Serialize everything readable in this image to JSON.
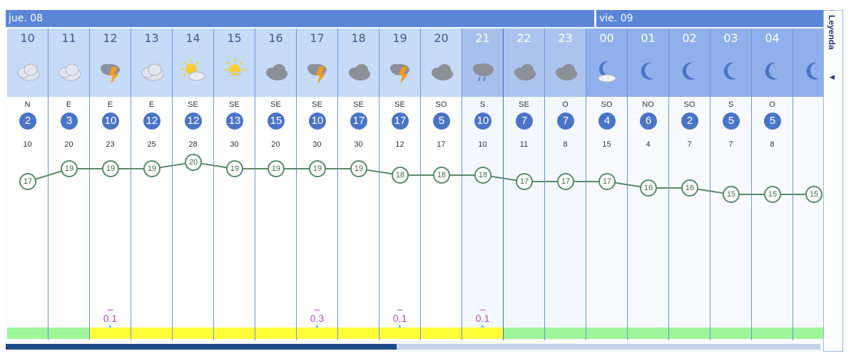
{
  "days": [
    {
      "label": "jue. 08"
    },
    {
      "label": "vie. 09"
    }
  ],
  "hours": [
    {
      "hour": "10",
      "icon": "cloud-icon",
      "dir": "N",
      "wind": "2",
      "gust": "10",
      "temp": 17,
      "rain": "",
      "uv": "green"
    },
    {
      "hour": "11",
      "icon": "cloud-icon",
      "dir": "E",
      "wind": "3",
      "gust": "20",
      "temp": 19,
      "rain": "",
      "uv": "green"
    },
    {
      "hour": "12",
      "icon": "storm-icon",
      "dir": "E",
      "wind": "10",
      "gust": "23",
      "temp": 19,
      "rain": "0.1",
      "uv": "yellow"
    },
    {
      "hour": "13",
      "icon": "cloud-icon",
      "dir": "E",
      "wind": "12",
      "gust": "25",
      "temp": 19,
      "rain": "",
      "uv": "yellow"
    },
    {
      "hour": "14",
      "icon": "sun-cloud-icon",
      "dir": "SE",
      "wind": "12",
      "gust": "28",
      "temp": 20,
      "rain": "",
      "uv": "yellow"
    },
    {
      "hour": "15",
      "icon": "hazy-sun-icon",
      "dir": "SE",
      "wind": "13",
      "gust": "30",
      "temp": 19,
      "rain": "",
      "uv": "yellow"
    },
    {
      "hour": "16",
      "icon": "dark-cloud-icon",
      "dir": "SE",
      "wind": "15",
      "gust": "20",
      "temp": 19,
      "rain": "",
      "uv": "yellow"
    },
    {
      "hour": "17",
      "icon": "storm-icon",
      "dir": "SE",
      "wind": "10",
      "gust": "30",
      "temp": 19,
      "rain": "0.3",
      "uv": "yellow"
    },
    {
      "hour": "18",
      "icon": "dark-cloud-icon",
      "dir": "SE",
      "wind": "17",
      "gust": "30",
      "temp": 19,
      "rain": "",
      "uv": "yellow"
    },
    {
      "hour": "19",
      "icon": "storm-icon",
      "dir": "SE",
      "wind": "17",
      "gust": "12",
      "temp": 18,
      "rain": "0.1",
      "uv": "yellow"
    },
    {
      "hour": "20",
      "icon": "dark-cloud-icon",
      "dir": "SO",
      "wind": "5",
      "gust": "17",
      "temp": 18,
      "rain": "",
      "uv": "yellow"
    },
    {
      "hour": "21",
      "icon": "rain-cloud-icon",
      "dir": "S",
      "wind": "10",
      "gust": "10",
      "temp": 18,
      "rain": "0.1",
      "uv": "yellow"
    },
    {
      "hour": "22",
      "icon": "dark-cloud-icon",
      "dir": "SE",
      "wind": "7",
      "gust": "11",
      "temp": 17,
      "rain": "",
      "uv": "green"
    },
    {
      "hour": "23",
      "icon": "dark-cloud-icon",
      "dir": "O",
      "wind": "7",
      "gust": "8",
      "temp": 17,
      "rain": "",
      "uv": "green"
    },
    {
      "hour": "00",
      "icon": "moon-cloud-icon",
      "dir": "SO",
      "wind": "4",
      "gust": "15",
      "temp": 17,
      "rain": "",
      "uv": "green"
    },
    {
      "hour": "01",
      "icon": "moon-icon",
      "dir": "NO",
      "wind": "6",
      "gust": "4",
      "temp": 16,
      "rain": "",
      "uv": "green"
    },
    {
      "hour": "02",
      "icon": "moon-icon",
      "dir": "SO",
      "wind": "2",
      "gust": "7",
      "temp": 16,
      "rain": "",
      "uv": "green"
    },
    {
      "hour": "03",
      "icon": "moon-icon",
      "dir": "S",
      "wind": "5",
      "gust": "7",
      "temp": 15,
      "rain": "",
      "uv": "green"
    },
    {
      "hour": "04",
      "icon": "moon-icon",
      "dir": "O",
      "wind": "5",
      "gust": "8",
      "temp": 15,
      "rain": "",
      "uv": "green"
    },
    {
      "hour": "",
      "icon": "moon-icon",
      "dir": "",
      "wind": "",
      "gust": "",
      "temp": 15,
      "rain": "",
      "uv": "green"
    }
  ],
  "legend": {
    "label": "Leyenda"
  },
  "scroll": {
    "position": 0.48
  },
  "colors": {
    "header": "#5b86d7",
    "uv_green": "#9ef59a",
    "uv_yellow": "#ffff3c",
    "temp_line": "#5a8a6a",
    "rain_text": "#b44ab8"
  }
}
